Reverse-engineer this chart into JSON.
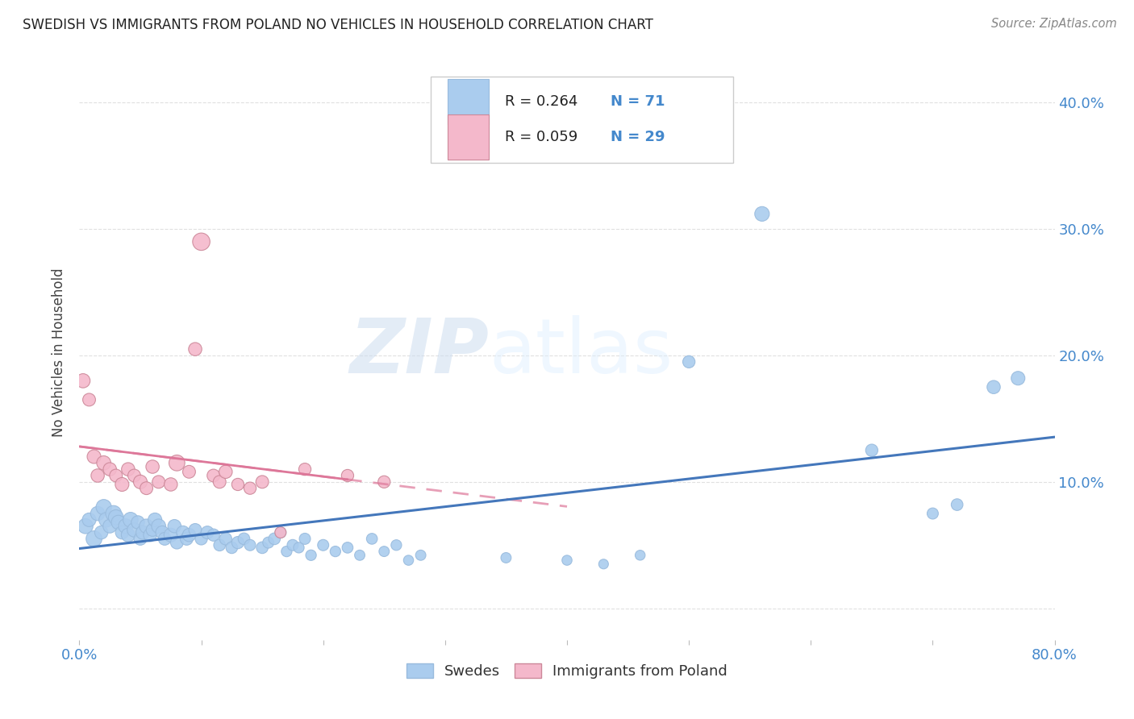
{
  "title": "SWEDISH VS IMMIGRANTS FROM POLAND NO VEHICLES IN HOUSEHOLD CORRELATION CHART",
  "source": "Source: ZipAtlas.com",
  "ylabel": "No Vehicles in Household",
  "xlim": [
    0.0,
    0.8
  ],
  "ylim": [
    -0.025,
    0.43
  ],
  "x_ticks": [
    0.0,
    0.1,
    0.2,
    0.3,
    0.4,
    0.5,
    0.6,
    0.7,
    0.8
  ],
  "x_tick_labels": [
    "0.0%",
    "",
    "",
    "",
    "",
    "",
    "",
    "",
    "80.0%"
  ],
  "y_ticks": [
    0.0,
    0.1,
    0.2,
    0.3,
    0.4
  ],
  "y_tick_labels": [
    "",
    "10.0%",
    "20.0%",
    "30.0%",
    "40.0%"
  ],
  "background_color": "#ffffff",
  "grid_color": "#e0e0e0",
  "blue_color": "#aaccee",
  "pink_color": "#f4b8cb",
  "blue_line_color": "#4477bb",
  "pink_line_color": "#dd7799",
  "legend_R_blue": "R = 0.264",
  "legend_N_blue": "N = 71",
  "legend_R_pink": "R = 0.059",
  "legend_N_pink": "N = 29",
  "legend_label_blue": "Swedes",
  "legend_label_pink": "Immigrants from Poland",
  "title_color": "#222222",
  "axis_label_color": "#444444",
  "tick_color": "#4488cc",
  "watermark_zip": "ZIP",
  "watermark_atlas": "atlas",
  "blue_scatter_x": [
    0.005,
    0.008,
    0.012,
    0.015,
    0.018,
    0.02,
    0.022,
    0.025,
    0.028,
    0.03,
    0.032,
    0.035,
    0.038,
    0.04,
    0.042,
    0.045,
    0.048,
    0.05,
    0.052,
    0.055,
    0.058,
    0.06,
    0.062,
    0.065,
    0.068,
    0.07,
    0.075,
    0.078,
    0.08,
    0.085,
    0.088,
    0.09,
    0.095,
    0.1,
    0.105,
    0.11,
    0.115,
    0.12,
    0.125,
    0.13,
    0.135,
    0.14,
    0.15,
    0.155,
    0.16,
    0.165,
    0.17,
    0.175,
    0.18,
    0.185,
    0.19,
    0.2,
    0.21,
    0.22,
    0.23,
    0.24,
    0.25,
    0.26,
    0.27,
    0.28,
    0.35,
    0.4,
    0.43,
    0.46,
    0.5,
    0.56,
    0.65,
    0.7,
    0.72,
    0.75,
    0.77
  ],
  "blue_scatter_y": [
    0.065,
    0.07,
    0.055,
    0.075,
    0.06,
    0.08,
    0.07,
    0.065,
    0.075,
    0.072,
    0.068,
    0.06,
    0.065,
    0.058,
    0.07,
    0.062,
    0.068,
    0.055,
    0.06,
    0.065,
    0.058,
    0.062,
    0.07,
    0.065,
    0.06,
    0.055,
    0.058,
    0.065,
    0.052,
    0.06,
    0.055,
    0.058,
    0.062,
    0.055,
    0.06,
    0.058,
    0.05,
    0.055,
    0.048,
    0.052,
    0.055,
    0.05,
    0.048,
    0.052,
    0.055,
    0.06,
    0.045,
    0.05,
    0.048,
    0.055,
    0.042,
    0.05,
    0.045,
    0.048,
    0.042,
    0.055,
    0.045,
    0.05,
    0.038,
    0.042,
    0.04,
    0.038,
    0.035,
    0.042,
    0.195,
    0.312,
    0.125,
    0.075,
    0.082,
    0.175,
    0.182
  ],
  "blue_scatter_sizes": [
    180,
    150,
    200,
    160,
    140,
    190,
    170,
    150,
    200,
    180,
    160,
    140,
    170,
    150,
    180,
    160,
    140,
    130,
    150,
    160,
    140,
    130,
    150,
    160,
    140,
    130,
    150,
    140,
    130,
    140,
    130,
    140,
    130,
    120,
    130,
    120,
    110,
    120,
    110,
    120,
    110,
    100,
    110,
    100,
    110,
    100,
    90,
    100,
    90,
    100,
    90,
    100,
    90,
    95,
    85,
    95,
    85,
    90,
    80,
    85,
    85,
    80,
    75,
    80,
    120,
    170,
    120,
    100,
    110,
    140,
    150
  ],
  "pink_scatter_x": [
    0.003,
    0.008,
    0.012,
    0.015,
    0.02,
    0.025,
    0.03,
    0.035,
    0.04,
    0.045,
    0.05,
    0.055,
    0.06,
    0.065,
    0.075,
    0.08,
    0.09,
    0.095,
    0.1,
    0.11,
    0.115,
    0.12,
    0.13,
    0.14,
    0.15,
    0.165,
    0.185,
    0.22,
    0.25
  ],
  "pink_scatter_y": [
    0.18,
    0.165,
    0.12,
    0.105,
    0.115,
    0.11,
    0.105,
    0.098,
    0.11,
    0.105,
    0.1,
    0.095,
    0.112,
    0.1,
    0.098,
    0.115,
    0.108,
    0.205,
    0.29,
    0.105,
    0.1,
    0.108,
    0.098,
    0.095,
    0.1,
    0.06,
    0.11,
    0.105,
    0.1
  ],
  "pink_scatter_sizes": [
    160,
    130,
    150,
    140,
    160,
    140,
    130,
    150,
    140,
    130,
    150,
    130,
    140,
    130,
    140,
    200,
    130,
    140,
    240,
    130,
    130,
    140,
    120,
    120,
    130,
    100,
    120,
    120,
    120
  ]
}
